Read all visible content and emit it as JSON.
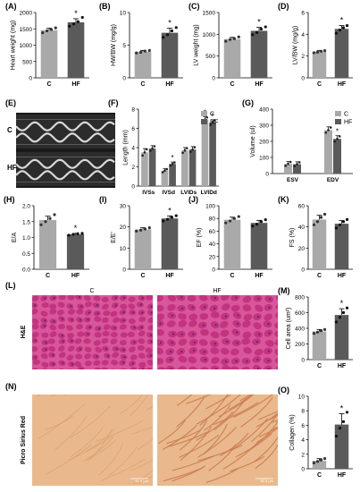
{
  "colors": {
    "control": "#a9a9a9",
    "hf": "#5a5a5a",
    "he_bg": "#d8579b",
    "he_cell": "#c3337f",
    "he_nucleus": "#5b2a72",
    "psr_bg": "#e9b98d",
    "psr_fiber": "#c97a4e"
  },
  "images": {
    "echo": {
      "letter": "(E)",
      "row_labels": [
        "C",
        "HF"
      ]
    },
    "he": {
      "letter": "(L)",
      "side_label": "H&E",
      "col_labels": [
        "C",
        "HF"
      ]
    },
    "psr": {
      "letter": "(N)",
      "side_label": "Picro Sirius Red",
      "scale_text": "50.0 μm"
    }
  },
  "chart_data": [
    {
      "panel": "(A)",
      "type": "bar",
      "ylabel": "Heart weight (mg)",
      "ylim": [
        0,
        2000
      ],
      "ticks": [
        0,
        500,
        1000,
        1500,
        2000
      ],
      "categories": [
        "C",
        "HF"
      ],
      "values": [
        1460,
        1700
      ],
      "errors": [
        60,
        110
      ],
      "sig": [
        "",
        "*"
      ],
      "points": [
        [
          1380,
          1440,
          1480,
          1530
        ],
        [
          1580,
          1650,
          1720,
          1850
        ]
      ]
    },
    {
      "panel": "(B)",
      "type": "bar",
      "ylabel": "HW/BW (mg/g)",
      "ylim": [
        0,
        10
      ],
      "ticks": [
        0,
        5,
        10
      ],
      "categories": [
        "C",
        "HF"
      ],
      "values": [
        4.0,
        6.9
      ],
      "errors": [
        0.2,
        0.7
      ],
      "sig": [
        "",
        "*"
      ],
      "points": [
        [
          3.8,
          3.9,
          4.1,
          4.2
        ],
        [
          6.2,
          6.6,
          7.2,
          7.7
        ]
      ]
    },
    {
      "panel": "(C)",
      "type": "bar",
      "ylabel": "LV weight (mg)",
      "ylim": [
        0,
        1500
      ],
      "ticks": [
        0,
        500,
        1000,
        1500
      ],
      "categories": [
        "C",
        "HF"
      ],
      "values": [
        890,
        1080
      ],
      "errors": [
        40,
        80
      ],
      "sig": [
        "",
        "*"
      ],
      "points": [
        [
          840,
          880,
          900,
          940
        ],
        [
          990,
          1040,
          1120,
          1170
        ]
      ]
    },
    {
      "panel": "(D)",
      "type": "bar",
      "ylabel": "LV/BW (mg/g)",
      "ylim": [
        0,
        6
      ],
      "ticks": [
        0,
        2,
        4,
        6
      ],
      "categories": [
        "C",
        "HF"
      ],
      "values": [
        2.4,
        4.5
      ],
      "errors": [
        0.1,
        0.3
      ],
      "sig": [
        "",
        "*"
      ],
      "points": [
        [
          2.3,
          2.35,
          2.45,
          2.5
        ],
        [
          4.1,
          4.4,
          4.6,
          4.8
        ]
      ]
    },
    {
      "panel": "(F)",
      "type": "grouped-bar",
      "ylabel": "Length (mm)",
      "ylim": [
        0,
        8
      ],
      "ticks": [
        0,
        2,
        4,
        6,
        8
      ],
      "categories": [
        "IVSs",
        "IVSd",
        "LVIDs",
        "LVIDd"
      ],
      "series": [
        {
          "name": "C",
          "values": [
            3.5,
            1.6,
            3.7,
            6.9
          ],
          "errors": [
            0.4,
            0.2,
            0.3,
            0.3
          ]
        },
        {
          "name": "HF",
          "values": [
            3.9,
            2.3,
            3.8,
            6.6
          ],
          "errors": [
            0.3,
            0.2,
            0.3,
            0.3
          ]
        }
      ],
      "sig": [
        [
          "",
          ""
        ],
        [
          "",
          "*"
        ],
        [
          "",
          ""
        ],
        [
          "*",
          "*"
        ]
      ],
      "legend": "top-right"
    },
    {
      "panel": "(G)",
      "type": "grouped-bar",
      "ylabel": "Volume (ul)",
      "ylim": [
        0,
        400
      ],
      "ticks": [
        0,
        100,
        200,
        300,
        400
      ],
      "categories": [
        "ESV",
        "EDV"
      ],
      "series": [
        {
          "name": "C",
          "values": [
            60,
            270
          ],
          "errors": [
            15,
            20
          ]
        },
        {
          "name": "HF",
          "values": [
            58,
            215
          ],
          "errors": [
            15,
            20
          ]
        }
      ],
      "sig": [
        [
          "",
          ""
        ],
        [
          "",
          "*"
        ]
      ],
      "legend": "top-right"
    },
    {
      "panel": "(H)",
      "type": "bar",
      "ylabel": "E/A",
      "ylim": [
        0,
        2.0
      ],
      "ticks": [
        0,
        0.5,
        1.0,
        1.5,
        2.0
      ],
      "categories": [
        "C",
        "HF"
      ],
      "values": [
        1.55,
        1.1
      ],
      "errors": [
        0.12,
        0.03
      ],
      "sig": [
        "",
        "*"
      ],
      "points": [
        [
          1.4,
          1.5,
          1.6,
          1.72
        ],
        [
          1.07,
          1.1,
          1.12,
          1.13
        ]
      ]
    },
    {
      "panel": "(I)",
      "type": "bar",
      "ylabel": "E/E'",
      "ylim": [
        0,
        30
      ],
      "ticks": [
        0,
        10,
        20,
        30
      ],
      "categories": [
        "C",
        "HF"
      ],
      "values": [
        18.8,
        24.0
      ],
      "errors": [
        0.8,
        1.2
      ],
      "sig": [
        "",
        "*"
      ],
      "points": [
        [
          18.0,
          18.5,
          19.0,
          19.6
        ],
        [
          22.8,
          23.6,
          24.5,
          25.3
        ]
      ]
    },
    {
      "panel": "(J)",
      "type": "bar",
      "ylabel": "EF (%)",
      "ylim": [
        0,
        100
      ],
      "ticks": [
        0,
        20,
        40,
        60,
        80,
        100
      ],
      "categories": [
        "C",
        "HF"
      ],
      "values": [
        78,
        73
      ],
      "errors": [
        4,
        4
      ],
      "sig": [
        "",
        ""
      ],
      "points": [
        [
          73,
          76,
          80,
          83
        ],
        [
          68,
          71,
          75,
          78
        ]
      ]
    },
    {
      "panel": "(K)",
      "type": "bar",
      "ylabel": "FS (%)",
      "ylim": [
        0,
        60
      ],
      "ticks": [
        0,
        20,
        40,
        60
      ],
      "categories": [
        "C",
        "HF"
      ],
      "values": [
        47,
        43
      ],
      "errors": [
        4,
        3
      ],
      "sig": [
        "",
        ""
      ],
      "points": [
        [
          42,
          45,
          49,
          52
        ],
        [
          39,
          42,
          45,
          47
        ]
      ]
    },
    {
      "panel": "(M)",
      "type": "bar",
      "ylabel": "Cell area (um²)",
      "ylim": [
        0,
        800
      ],
      "ticks": [
        0,
        200,
        400,
        600,
        800
      ],
      "categories": [
        "C",
        "HF"
      ],
      "values": [
        360,
        570
      ],
      "errors": [
        25,
        80
      ],
      "sig": [
        "",
        "*"
      ],
      "points": [
        [
          335,
          350,
          370,
          385
        ],
        [
          480,
          540,
          600,
          660
        ]
      ]
    },
    {
      "panel": "(O)",
      "type": "bar",
      "ylabel": "Collagen (%)",
      "ylim": [
        0,
        10
      ],
      "ticks": [
        0,
        2,
        4,
        6,
        8,
        10
      ],
      "categories": [
        "C",
        "HF"
      ],
      "values": [
        1.1,
        6.1
      ],
      "errors": [
        0.3,
        1.5
      ],
      "sig": [
        "",
        "*"
      ],
      "points": [
        [
          0.8,
          1.0,
          1.2,
          1.4
        ],
        [
          4.5,
          5.6,
          6.5,
          7.8
        ]
      ]
    }
  ]
}
